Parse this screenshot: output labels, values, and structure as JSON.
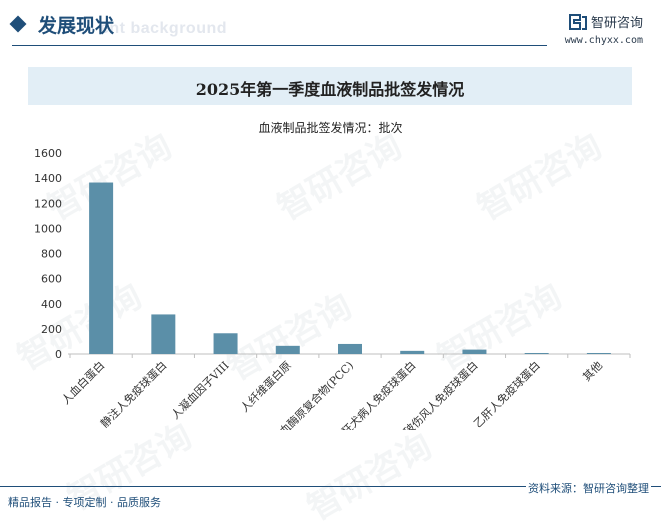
{
  "header": {
    "section_title": "发展现状",
    "ghost_text": "ent background",
    "brand_name": "智研咨询",
    "brand_url": "www.chyxx.com",
    "brand_color": "#1f4e79"
  },
  "watermark_text": "智研咨询",
  "chart_data": {
    "type": "bar",
    "title": "2025年第一季度血液制品批签发情况",
    "subtitle": "血液制品批签发情况：批次",
    "categories": [
      "人血白蛋白",
      "静注人免疫球蛋白",
      "人凝血因子VIII",
      "人纤维蛋白原",
      "人凝血酶原复合物(PCC)",
      "狂犬病人免疫球蛋白",
      "破伤风人免疫球蛋白",
      "乙肝人免疫球蛋白",
      "其他"
    ],
    "values": [
      1365,
      315,
      165,
      65,
      80,
      25,
      35,
      8,
      8
    ],
    "ylim": [
      0,
      1600
    ],
    "yticks": [
      0,
      200,
      400,
      600,
      800,
      1000,
      1200,
      1400,
      1600
    ],
    "bar_color": "#5b8fa8",
    "grid": false
  },
  "footer": {
    "left": "精品报告 · 专项定制 · 品质服务",
    "right": "资料来源：智研咨询整理"
  }
}
